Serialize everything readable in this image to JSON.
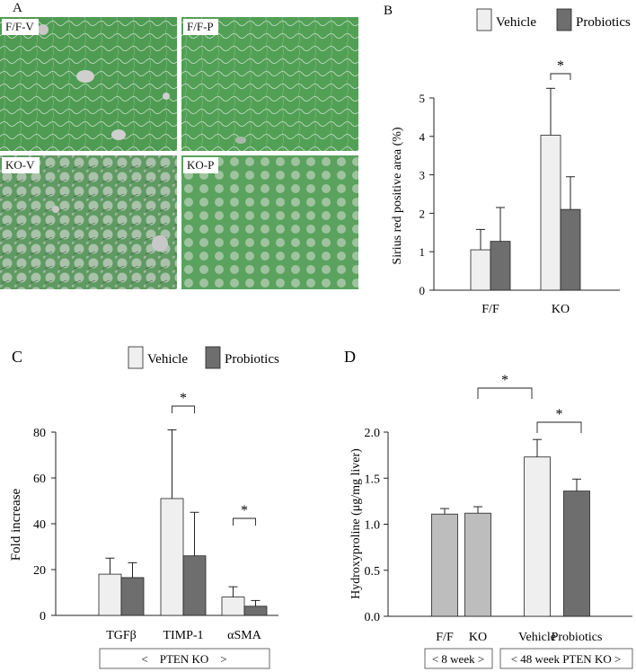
{
  "colors": {
    "vehicle": "#efefef",
    "probiotics": "#6e6e6e",
    "light_gray": "#bdbdbd",
    "tissue_green": "#4e9a52"
  },
  "panel_a": {
    "letter": "A",
    "tiles": [
      {
        "label": "F/F-V"
      },
      {
        "label": "F/F-P"
      },
      {
        "label": "KO-V"
      },
      {
        "label": "KO-P"
      }
    ]
  },
  "legend": {
    "vehicle": "Vehicle",
    "probiotics": "Probiotics"
  },
  "chart_data": [
    {
      "panel": "B",
      "type": "bar",
      "ylabel": "Sirius red positive area (%)",
      "ylim": [
        0,
        5
      ],
      "yticks": [
        "0",
        "1",
        "2",
        "3",
        "4",
        "5"
      ],
      "categories": [
        "F/F",
        "KO"
      ],
      "series": [
        {
          "name": "Vehicle",
          "values": [
            1.05,
            4.03
          ],
          "errors": [
            0.53,
            1.22
          ]
        },
        {
          "name": "Probiotics",
          "values": [
            1.27,
            2.1
          ],
          "errors": [
            0.88,
            0.85
          ]
        }
      ],
      "annotations": [
        {
          "text": "*",
          "between": "KO Vehicle vs KO Probiotics"
        }
      ],
      "legend_position": "top"
    },
    {
      "panel": "C",
      "type": "bar",
      "ylabel": "Fold increase",
      "ylim": [
        0,
        80
      ],
      "yticks": [
        "0",
        "20",
        "40",
        "60",
        "80"
      ],
      "categories": [
        "TGFβ",
        "TIMP-1",
        "αSMA"
      ],
      "series": [
        {
          "name": "Vehicle",
          "values": [
            18,
            51,
            8
          ],
          "errors": [
            7,
            30,
            4.5
          ]
        },
        {
          "name": "Probiotics",
          "values": [
            16.5,
            26,
            4
          ],
          "errors": [
            6.5,
            19,
            2.5
          ]
        }
      ],
      "annotations": [
        {
          "text": "*",
          "between": "TIMP-1 Vehicle vs Probiotics"
        },
        {
          "text": "*",
          "between": "αSMA Vehicle vs Probiotics"
        }
      ],
      "group_label": "<　PTEN KO　>",
      "legend_position": "top"
    },
    {
      "panel": "D",
      "type": "bar",
      "ylabel": "Hydroxyproline  (μg/mg liver)",
      "ylim": [
        0,
        2.0
      ],
      "yticks": [
        "0.0",
        "0.5",
        "1.0",
        "1.5",
        "2.0"
      ],
      "categories": [
        "F/F",
        "KO",
        "Vehicle",
        "Probiotics"
      ],
      "values": [
        1.11,
        1.12,
        1.73,
        1.36
      ],
      "errors": [
        0.06,
        0.07,
        0.19,
        0.13
      ],
      "bar_colors": [
        "#bdbdbd",
        "#bdbdbd",
        "#efefef",
        "#6e6e6e"
      ],
      "group_labels": [
        "< 8 week >",
        "< 48 week PTEN KO >"
      ],
      "annotations": [
        {
          "text": "*",
          "between": "KO vs Vehicle"
        },
        {
          "text": "*",
          "between": "Vehicle vs Probiotics"
        }
      ]
    }
  ]
}
